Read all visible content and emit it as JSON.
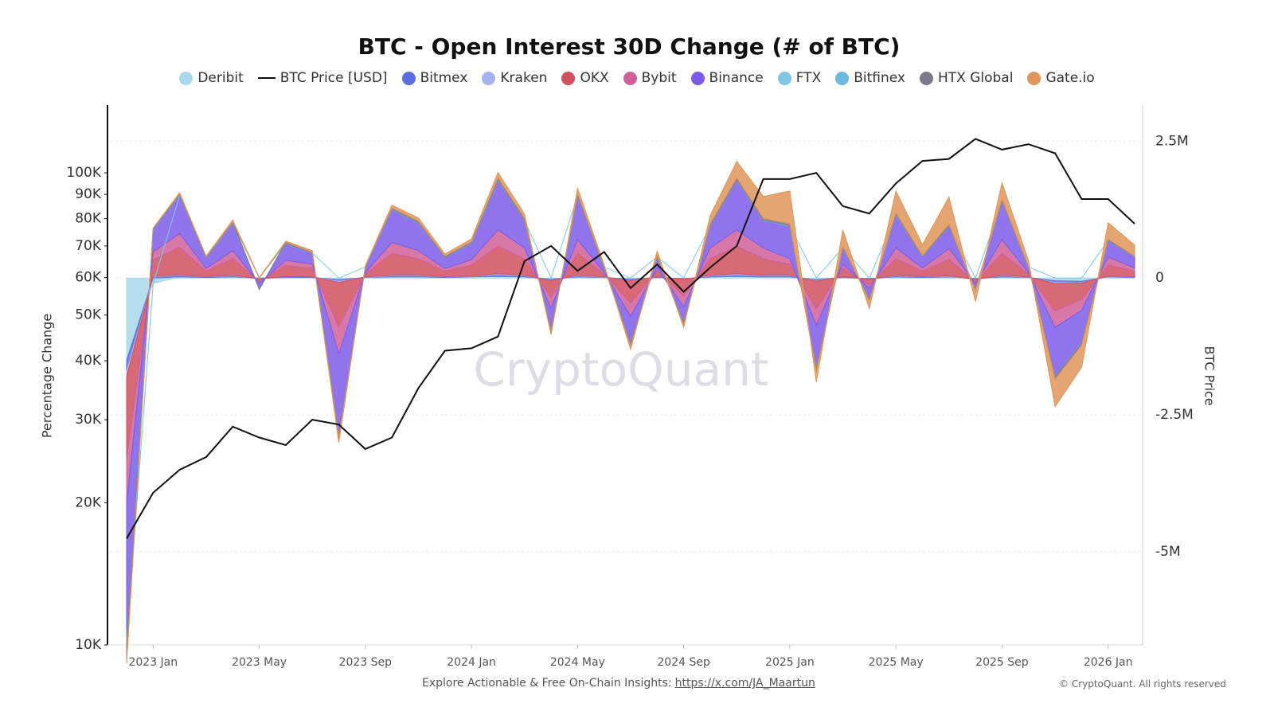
{
  "chart_data": {
    "type": "stacked_area_line",
    "title": "BTC - Open Interest 30D Change (# of BTC)",
    "y_label": "Percentage Change",
    "y2_label": "BTC Price",
    "watermark": "CryptoQuant",
    "footer": "Explore Actionable & Free On-Chain Insights:",
    "footer_link": "https://x.com/JA_Maartun",
    "copyright": "© CryptoQuant. All rights reserved",
    "log_scale": true,
    "grid": true,
    "x": [
      "2022 Dec",
      "2023 Jan",
      "2023 Feb",
      "2023 Mar",
      "2023 Apr",
      "2023 May",
      "2023 Jun",
      "2023 Jul",
      "2023 Aug",
      "2023 Sep",
      "2023 Oct",
      "2023 Nov",
      "2023 Dec",
      "2024 Jan",
      "2024 Feb",
      "2024 Mar",
      "2024 Apr",
      "2024 May",
      "2024 Jun",
      "2024 Jul",
      "2024 Aug",
      "2024 Sep",
      "2024 Oct",
      "2024 Nov",
      "2024 Dec",
      "2025 Jan",
      "2025 Feb",
      "2025 Mar",
      "2025 Apr",
      "2025 May",
      "2025 Jun",
      "2025 Jul",
      "2025 Aug",
      "2025 Sep",
      "2025 Oct",
      "2025 Nov",
      "2025 Dec",
      "2026 Jan",
      "2026 Feb"
    ],
    "xticks": [
      "2023 Jan",
      "2023 May",
      "2023 Sep",
      "2024 Jan",
      "2024 May",
      "2024 Sep",
      "2025 Jan",
      "2025 May",
      "2025 Sep",
      "2026 Jan"
    ],
    "ylim": [
      10000,
      137000
    ],
    "yticks": [
      {
        "value": 10000,
        "label": "10K"
      },
      {
        "value": 20000,
        "label": "20K"
      },
      {
        "value": 30000,
        "label": "30K"
      },
      {
        "value": 40000,
        "label": "40K"
      },
      {
        "value": 50000,
        "label": "50K"
      },
      {
        "value": 60000,
        "label": "60K"
      },
      {
        "value": 70000,
        "label": "70K"
      },
      {
        "value": 80000,
        "label": "80K"
      },
      {
        "value": 90000,
        "label": "90K"
      },
      {
        "value": 100000,
        "label": "100K"
      }
    ],
    "y2lim": [
      -6700000,
      3100000
    ],
    "y2ticks": [
      {
        "value": 2500000,
        "label": "2.5M"
      },
      0,
      {
        "value": -2500000,
        "label": "-2.5M"
      },
      {
        "value": -5000000,
        "label": "-5M"
      }
    ],
    "series": [
      {
        "name": "Deribit",
        "color": "#a8d8ea",
        "axis": "y2",
        "values": [
          -1500000,
          -100000,
          20000,
          10000,
          20000,
          0,
          10000,
          10000,
          -30000,
          10000,
          20000,
          20000,
          10000,
          20000,
          30000,
          20000,
          -20000,
          20000,
          10000,
          -20000,
          10000,
          -10000,
          20000,
          30000,
          20000,
          20000,
          -30000,
          10000,
          -10000,
          20000,
          10000,
          20000,
          -10000,
          20000,
          10000,
          -50000,
          -60000,
          20000,
          10000
        ]
      },
      {
        "name": "BTC Price [USD]",
        "color": "#111111",
        "axis": "y",
        "type": "line",
        "values": [
          16800,
          21000,
          23500,
          25000,
          29000,
          27500,
          26500,
          30000,
          29300,
          26000,
          27500,
          35000,
          42000,
          42500,
          45000,
          65000,
          70000,
          62000,
          68000,
          57000,
          64000,
          56000,
          63000,
          70000,
          97000,
          97000,
          100000,
          85000,
          82000,
          95000,
          106000,
          107000,
          118000,
          112000,
          115000,
          110000,
          88000,
          88000,
          78000
        ]
      },
      {
        "name": "Bitmex",
        "color": "#5b6ee1",
        "axis": "y2",
        "values": [
          -200000,
          20000,
          30000,
          10000,
          20000,
          -10000,
          10000,
          10000,
          -30000,
          5000,
          20000,
          20000,
          10000,
          10000,
          30000,
          20000,
          -20000,
          20000,
          5000,
          -20000,
          10000,
          -10000,
          20000,
          30000,
          20000,
          20000,
          -20000,
          10000,
          -10000,
          20000,
          10000,
          10000,
          -10000,
          20000,
          5000,
          -30000,
          -20000,
          10000,
          10000
        ]
      },
      {
        "name": "Kraken",
        "color": "#a5b4f0",
        "axis": "y2",
        "values": [
          -100000,
          10000,
          10000,
          5000,
          10000,
          -5000,
          5000,
          5000,
          -20000,
          5000,
          10000,
          10000,
          5000,
          5000,
          20000,
          10000,
          -10000,
          10000,
          5000,
          -10000,
          5000,
          -5000,
          10000,
          20000,
          10000,
          10000,
          -10000,
          5000,
          -5000,
          10000,
          5000,
          10000,
          -5000,
          10000,
          5000,
          -20000,
          -10000,
          5000,
          5000
        ]
      },
      {
        "name": "OKX",
        "color": "#d0505e",
        "axis": "y2",
        "values": [
          -1500000,
          300000,
          500000,
          100000,
          300000,
          -50000,
          200000,
          150000,
          -800000,
          50000,
          400000,
          300000,
          100000,
          200000,
          500000,
          300000,
          -300000,
          400000,
          50000,
          -400000,
          100000,
          -300000,
          300000,
          500000,
          300000,
          200000,
          -500000,
          150000,
          -100000,
          300000,
          100000,
          300000,
          -50000,
          400000,
          50000,
          -500000,
          -300000,
          200000,
          100000
        ]
      },
      {
        "name": "Bybit",
        "color": "#d0609a",
        "axis": "y2",
        "values": [
          -800000,
          150000,
          250000,
          50000,
          150000,
          -30000,
          100000,
          80000,
          -500000,
          30000,
          200000,
          150000,
          50000,
          100000,
          300000,
          200000,
          -200000,
          250000,
          30000,
          -250000,
          60000,
          -200000,
          200000,
          300000,
          200000,
          100000,
          -300000,
          80000,
          -60000,
          200000,
          60000,
          200000,
          -30000,
          250000,
          30000,
          -300000,
          -200000,
          150000,
          60000
        ]
      },
      {
        "name": "Binance",
        "color": "#7b5ce8",
        "axis": "y2",
        "values": [
          -2500000,
          400000,
          700000,
          200000,
          500000,
          -100000,
          300000,
          200000,
          -1500000,
          100000,
          600000,
          500000,
          200000,
          300000,
          900000,
          500000,
          -400000,
          800000,
          100000,
          -500000,
          200000,
          -300000,
          400000,
          900000,
          500000,
          600000,
          -800000,
          300000,
          -200000,
          600000,
          200000,
          400000,
          -100000,
          700000,
          100000,
          -900000,
          -600000,
          300000,
          200000
        ]
      },
      {
        "name": "FTX",
        "color": "#7ec8e3",
        "axis": "y2",
        "values": [
          -60000,
          -10000,
          0,
          0,
          0,
          0,
          0,
          0,
          0,
          0,
          0,
          0,
          0,
          0,
          0,
          0,
          0,
          0,
          0,
          0,
          0,
          0,
          0,
          0,
          0,
          0,
          0,
          0,
          0,
          0,
          0,
          0,
          0,
          0,
          0,
          0,
          0,
          0,
          0
        ]
      },
      {
        "name": "Bitfinex",
        "color": "#6bb8e0",
        "axis": "y2",
        "values": [
          -80000,
          10000,
          10000,
          5000,
          10000,
          -5000,
          10000,
          5000,
          -10000,
          5000,
          10000,
          10000,
          5000,
          10000,
          10000,
          10000,
          -5000,
          10000,
          5000,
          -10000,
          5000,
          -5000,
          10000,
          10000,
          10000,
          10000,
          -10000,
          5000,
          -5000,
          10000,
          5000,
          10000,
          -5000,
          10000,
          5000,
          -10000,
          -10000,
          5000,
          5000
        ]
      },
      {
        "name": "HTX Global",
        "color": "#7a7a8a",
        "axis": "y2",
        "values": [
          -200000,
          20000,
          20000,
          10000,
          20000,
          -10000,
          20000,
          10000,
          -40000,
          10000,
          20000,
          30000,
          20000,
          20000,
          40000,
          30000,
          -30000,
          30000,
          10000,
          -30000,
          20000,
          -20000,
          30000,
          40000,
          30000,
          30000,
          -30000,
          20000,
          -20000,
          30000,
          20000,
          30000,
          -20000,
          30000,
          10000,
          -40000,
          -30000,
          20000,
          10000
        ]
      },
      {
        "name": "Gate.io",
        "color": "#e0955a",
        "axis": "y2",
        "values": [
          -100000,
          0,
          20000,
          10000,
          30000,
          10000,
          20000,
          30000,
          -80000,
          10000,
          50000,
          60000,
          40000,
          50000,
          100000,
          80000,
          -50000,
          100000,
          30000,
          -60000,
          80000,
          -50000,
          150000,
          300000,
          400000,
          600000,
          -200000,
          300000,
          -150000,
          400000,
          200000,
          500000,
          -200000,
          300000,
          100000,
          -500000,
          -400000,
          300000,
          200000
        ]
      }
    ]
  }
}
